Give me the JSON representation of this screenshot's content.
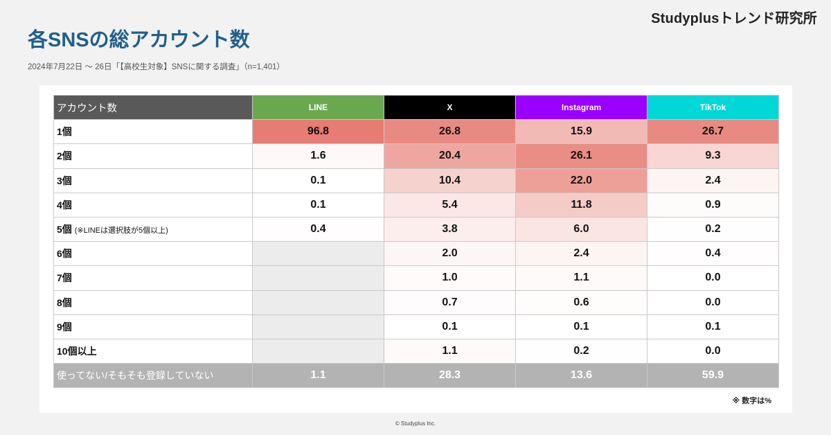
{
  "brand": "Studyplusトレンド研究所",
  "title": "各SNSの総アカウント数",
  "subtitle": "2024年7月22日 〜 26日「【高校生対象】SNSに関する調査」（n=1,401）",
  "footnote": "※ 数字は%",
  "copyright": "© Studyplus Inc.",
  "colors": {
    "LINE": "#6aa84f",
    "X": "#000000",
    "Instagram": "#9900ff",
    "TikTok": "#00d7d7",
    "heat_max": "#e67c73",
    "empty_cell": "#ececec",
    "total_row": "#b3b3b3"
  },
  "chart_data": {
    "type": "table",
    "corner_header": "アカウント数",
    "columns": [
      "LINE",
      "X",
      "Instagram",
      "TikTok"
    ],
    "rows": [
      {
        "label": "1個",
        "note": "",
        "values": [
          "96.8",
          "26.8",
          "15.9",
          "26.7"
        ]
      },
      {
        "label": "2個",
        "note": "",
        "values": [
          "1.6",
          "20.4",
          "26.1",
          "9.3"
        ]
      },
      {
        "label": "3個",
        "note": "",
        "values": [
          "0.1",
          "10.4",
          "22.0",
          "2.4"
        ]
      },
      {
        "label": "4個",
        "note": "",
        "values": [
          "0.1",
          "5.4",
          "11.8",
          "0.9"
        ]
      },
      {
        "label": "5個",
        "note": "(※LINEは選択肢が5個以上)",
        "values": [
          "0.4",
          "3.8",
          "6.0",
          "0.2"
        ]
      },
      {
        "label": "6個",
        "note": "",
        "values": [
          null,
          "2.0",
          "2.4",
          "0.4"
        ]
      },
      {
        "label": "7個",
        "note": "",
        "values": [
          null,
          "1.0",
          "1.1",
          "0.0"
        ]
      },
      {
        "label": "8個",
        "note": "",
        "values": [
          null,
          "0.7",
          "0.6",
          "0.0"
        ]
      },
      {
        "label": "9個",
        "note": "",
        "values": [
          null,
          "0.1",
          "0.1",
          "0.1"
        ]
      },
      {
        "label": "10個以上",
        "note": "",
        "values": [
          null,
          "1.1",
          "0.2",
          "0.0"
        ]
      }
    ],
    "total_row": {
      "label": "使ってない/そもそも登録していない",
      "values": [
        "1.1",
        "28.3",
        "13.6",
        "59.9"
      ]
    }
  }
}
